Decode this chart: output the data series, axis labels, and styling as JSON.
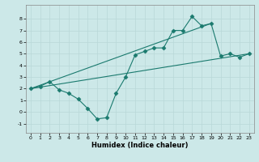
{
  "xlabel": "Humidex (Indice chaleur)",
  "ylabel": "",
  "bg_color": "#cce8e8",
  "line_color": "#1a7a6e",
  "xlim": [
    -0.5,
    23.5
  ],
  "ylim": [
    -1.8,
    9.2
  ],
  "xticks": [
    0,
    1,
    2,
    3,
    4,
    5,
    6,
    7,
    8,
    9,
    10,
    11,
    12,
    13,
    14,
    15,
    16,
    17,
    18,
    19,
    20,
    21,
    22,
    23
  ],
  "yticks": [
    -1,
    0,
    1,
    2,
    3,
    4,
    5,
    6,
    7,
    8
  ],
  "series1_x": [
    0,
    1,
    2,
    3,
    4,
    5,
    6,
    7,
    8,
    9,
    10,
    11,
    12,
    13,
    14,
    15,
    16,
    17,
    18,
    19,
    20,
    21,
    22,
    23
  ],
  "series1_y": [
    2.0,
    2.2,
    2.6,
    1.9,
    1.6,
    1.1,
    0.3,
    -0.6,
    -0.5,
    1.6,
    3.0,
    4.9,
    5.2,
    5.5,
    5.5,
    7.0,
    7.0,
    8.2,
    7.4,
    7.6,
    4.8,
    5.0,
    4.7,
    5.0
  ],
  "series2_x": [
    0,
    23
  ],
  "series2_y": [
    2.0,
    5.0
  ],
  "series3_x": [
    0,
    19
  ],
  "series3_y": [
    2.0,
    7.6
  ],
  "marker": "D",
  "markersize": 2.5,
  "grid_color": "#b8d8d8",
  "xlabel_fontsize": 6,
  "tick_fontsize": 4.5
}
